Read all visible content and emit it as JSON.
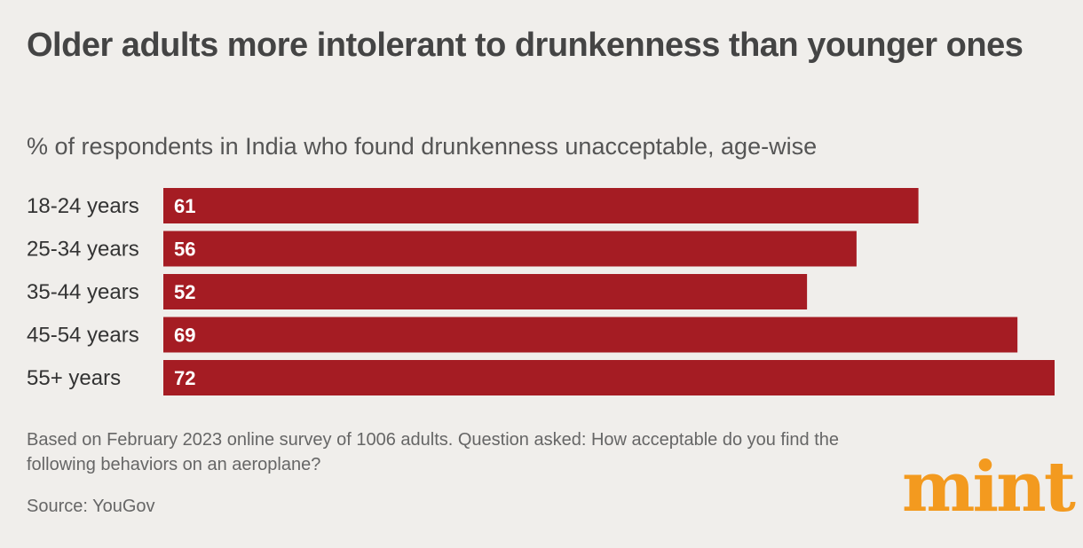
{
  "chart_data": {
    "type": "bar",
    "orientation": "horizontal",
    "title": "Older adults more intolerant to drunkenness than younger ones",
    "subtitle": "% of respondents in India who found drunkenness unacceptable, age-wise",
    "categories": [
      "18-24 years",
      "25-34 years",
      "35-44 years",
      "45-54 years",
      "55+ years"
    ],
    "values": [
      61,
      56,
      52,
      69,
      72
    ],
    "bar_color": "#a51c23",
    "data_labels": true,
    "grid": false,
    "xlim": [
      0,
      72
    ]
  },
  "footnote": "Based on February 2023 online survey of 1006 adults. Question asked: How acceptable do you find the following behaviors on an aeroplane?",
  "source": "Source: YouGov",
  "logo": {
    "text": "mint",
    "color": "#f39a1f"
  }
}
